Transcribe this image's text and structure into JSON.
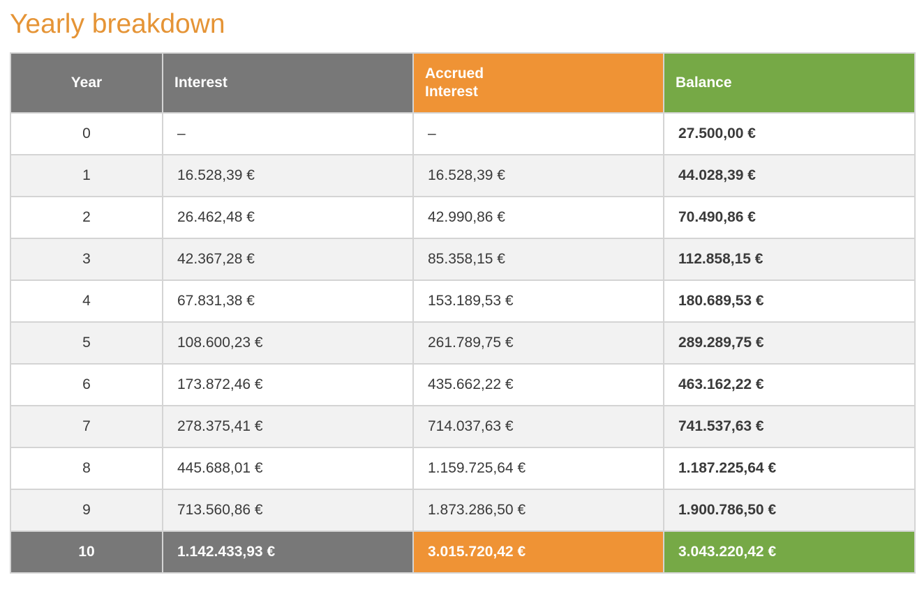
{
  "page": {
    "title": "Yearly breakdown"
  },
  "colors": {
    "title": "#e59436",
    "gray": "#787878",
    "orange": "#ef9335",
    "green": "#76a946"
  },
  "table": {
    "headers": {
      "year": "Year",
      "interest": "Interest",
      "accrued": "Accrued Interest",
      "balance": "Balance"
    },
    "rows": [
      {
        "year": "0",
        "interest": "–",
        "accrued": "–",
        "balance": "27.500,00 €"
      },
      {
        "year": "1",
        "interest": "16.528,39 €",
        "accrued": "16.528,39 €",
        "balance": "44.028,39 €"
      },
      {
        "year": "2",
        "interest": "26.462,48 €",
        "accrued": "42.990,86 €",
        "balance": "70.490,86 €"
      },
      {
        "year": "3",
        "interest": "42.367,28 €",
        "accrued": "85.358,15 €",
        "balance": "112.858,15 €"
      },
      {
        "year": "4",
        "interest": "67.831,38 €",
        "accrued": "153.189,53 €",
        "balance": "180.689,53 €"
      },
      {
        "year": "5",
        "interest": "108.600,23 €",
        "accrued": "261.789,75 €",
        "balance": "289.289,75 €"
      },
      {
        "year": "6",
        "interest": "173.872,46 €",
        "accrued": "435.662,22 €",
        "balance": "463.162,22 €"
      },
      {
        "year": "7",
        "interest": "278.375,41 €",
        "accrued": "714.037,63 €",
        "balance": "741.537,63 €"
      },
      {
        "year": "8",
        "interest": "445.688,01 €",
        "accrued": "1.159.725,64 €",
        "balance": "1.187.225,64 €"
      },
      {
        "year": "9",
        "interest": "713.560,86 €",
        "accrued": "1.873.286,50 €",
        "balance": "1.900.786,50 €"
      }
    ],
    "final": {
      "year": "10",
      "interest": "1.142.433,93 €",
      "accrued": "3.015.720,42 €",
      "balance": "3.043.220,42 €"
    }
  }
}
